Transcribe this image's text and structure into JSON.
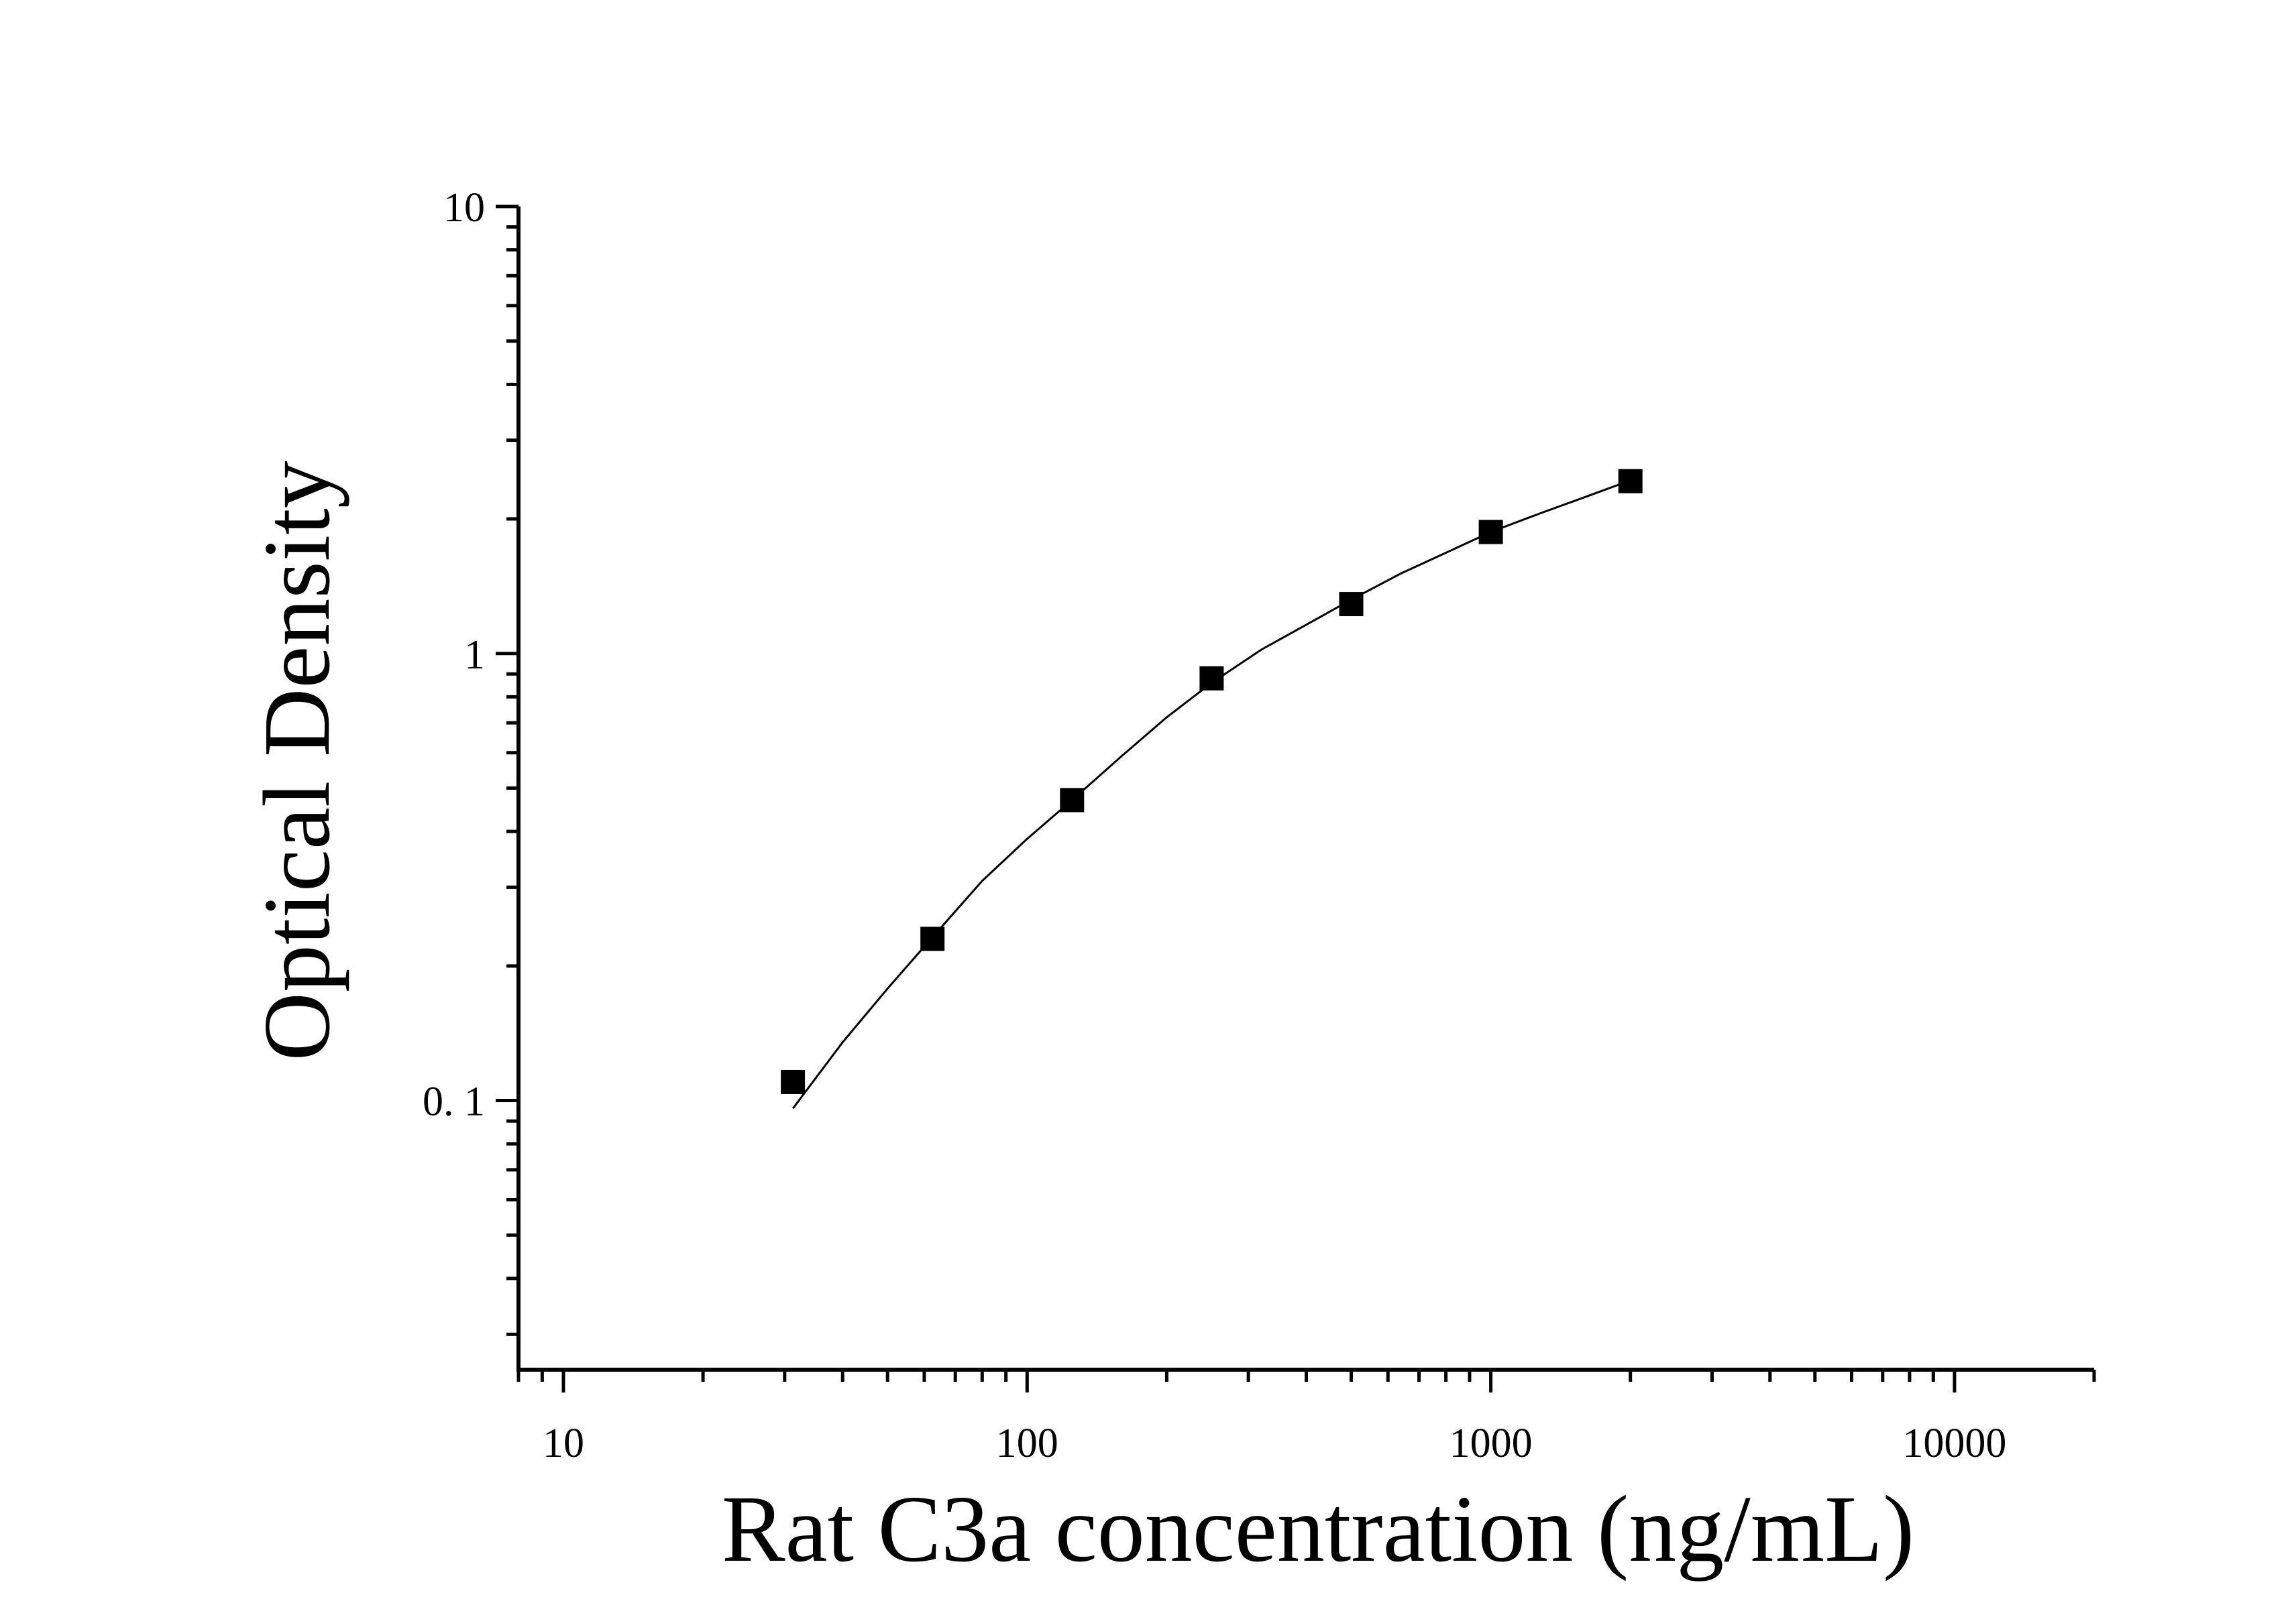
{
  "chart_data": {
    "type": "scatter",
    "title": "",
    "xlabel": "Rat C3a concentration (ng/mL)",
    "ylabel": "Optical Density",
    "x_scale": "log",
    "y_scale": "log",
    "xlim": [
      8,
      20000
    ],
    "ylim": [
      0.025,
      10
    ],
    "x_ticks": [
      {
        "value": 10,
        "label": "10"
      },
      {
        "value": 100,
        "label": "100"
      },
      {
        "value": 1000,
        "label": "1000"
      },
      {
        "value": 10000,
        "label": "10000"
      }
    ],
    "y_ticks": [
      {
        "value": 0.1,
        "label": "0. 1"
      },
      {
        "value": 1,
        "label": "1"
      },
      {
        "value": 10,
        "label": "10"
      }
    ],
    "grid": false,
    "marker": "square",
    "series": [
      {
        "points": [
          {
            "x": 31.25,
            "y": 0.11
          },
          {
            "x": 62.5,
            "y": 0.23
          },
          {
            "x": 125,
            "y": 0.47
          },
          {
            "x": 250,
            "y": 0.88
          },
          {
            "x": 500,
            "y": 1.29
          },
          {
            "x": 1000,
            "y": 1.87
          },
          {
            "x": 2000,
            "y": 2.43
          }
        ]
      }
    ],
    "fit_curve": [
      {
        "x": 31.25,
        "y": 0.096
      },
      {
        "x": 40,
        "y": 0.135
      },
      {
        "x": 50,
        "y": 0.178
      },
      {
        "x": 62.5,
        "y": 0.232
      },
      {
        "x": 80,
        "y": 0.31
      },
      {
        "x": 100,
        "y": 0.385
      },
      {
        "x": 125,
        "y": 0.47
      },
      {
        "x": 160,
        "y": 0.59
      },
      {
        "x": 200,
        "y": 0.72
      },
      {
        "x": 250,
        "y": 0.86
      },
      {
        "x": 320,
        "y": 1.02
      },
      {
        "x": 400,
        "y": 1.16
      },
      {
        "x": 500,
        "y": 1.32
      },
      {
        "x": 640,
        "y": 1.51
      },
      {
        "x": 800,
        "y": 1.68
      },
      {
        "x": 1000,
        "y": 1.87
      },
      {
        "x": 1280,
        "y": 2.06
      },
      {
        "x": 1600,
        "y": 2.24
      },
      {
        "x": 2000,
        "y": 2.44
      }
    ],
    "colors": {
      "axis": "#000000",
      "marker": "#000000",
      "line": "#000000",
      "background": "#ffffff"
    }
  }
}
